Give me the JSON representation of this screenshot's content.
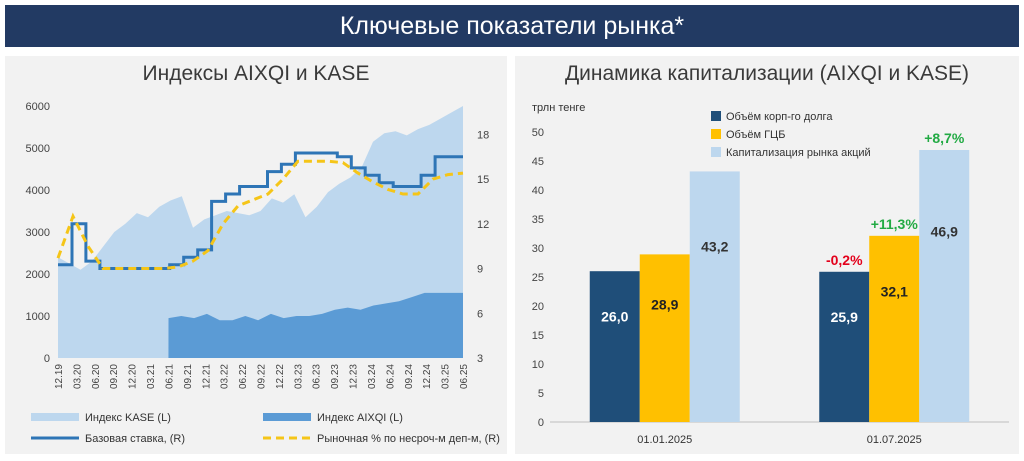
{
  "header": {
    "title": "Ключевые показатели рынка*"
  },
  "left_chart": {
    "title": "Индексы AIXQI и KASE",
    "legend": {
      "kase": "Индекс KASE (L)",
      "aixqi": "Индекс AIXQI (L)",
      "base_rate": "Базовая ставка, (R)",
      "market_rate": "Рыночная % по несроч-м деп-м, (R)"
    },
    "colors": {
      "kase": "#bdd7ee",
      "aixqi": "#5b9bd5",
      "base_rate": "#2e75b6",
      "market_rate": "#f5c518"
    }
  },
  "right_chart": {
    "title": "Динамика капитализации (AIXQI и KASE)",
    "unit": "трлн тенге",
    "legend": {
      "corp": "Объём корп-го долга",
      "gcb": "Объём ГЦБ",
      "cap": "Капитализация рынка акций"
    },
    "colors": {
      "corp": "#1f4e79",
      "gcb": "#ffc000",
      "cap": "#bdd7ee",
      "neg": "#e3001b",
      "pos": "#22aa44"
    }
  },
  "chart_data": [
    {
      "type": "area",
      "title": "Индексы AIXQI и KASE",
      "x_ticks": [
        "12.19",
        "03.20",
        "06.20",
        "09.20",
        "12.20",
        "03.21",
        "06.21",
        "09.21",
        "12.21",
        "03.22",
        "06.22",
        "09.22",
        "12.22",
        "03.23",
        "06.23",
        "09.23",
        "12.23",
        "03.24",
        "06.24",
        "09.24",
        "12.24",
        "03.25",
        "06.25"
      ],
      "y_left": {
        "ticks": [
          0,
          1000,
          2000,
          3000,
          4000,
          5000,
          6000
        ],
        "range": [
          0,
          6000
        ]
      },
      "y_right": {
        "ticks": [
          3,
          6,
          9,
          12,
          15,
          18
        ],
        "range": [
          3,
          19.9
        ]
      },
      "series": [
        {
          "name": "Индекс KASE (L)",
          "axis": "left",
          "kind": "area",
          "values": [
            2400,
            2250,
            2100,
            2300,
            2650,
            3000,
            3200,
            3450,
            3350,
            3600,
            3750,
            3850,
            3100,
            3300,
            3400,
            3500,
            3450,
            3400,
            3500,
            3800,
            3700,
            3900,
            3350,
            3600,
            3950,
            4150,
            4300,
            4550,
            5150,
            5350,
            5400,
            5300,
            5450,
            5550,
            5700,
            5850,
            6000
          ]
        },
        {
          "name": "Индекс AIXQI (L)",
          "axis": "left",
          "kind": "area",
          "start_tick": 6,
          "values": [
            950,
            1000,
            950,
            1050,
            900,
            900,
            1000,
            900,
            1050,
            950,
            1000,
            1000,
            1050,
            1150,
            1200,
            1150,
            1250,
            1300,
            1350,
            1450,
            1550,
            1550,
            1550,
            1550
          ]
        },
        {
          "name": "Базовая ставка, (R)",
          "axis": "right",
          "kind": "step",
          "values": [
            9.25,
            12.0,
            9.5,
            9.0,
            9.0,
            9.0,
            9.0,
            9.0,
            9.25,
            9.75,
            10.25,
            13.5,
            14.0,
            14.5,
            14.5,
            15.5,
            16.0,
            16.75,
            16.75,
            16.75,
            16.5,
            15.75,
            15.25,
            14.75,
            14.5,
            14.5,
            15.25,
            16.5,
            16.5
          ]
        },
        {
          "name": "Рыночная % по несроч-м деп-м, (R)",
          "axis": "right",
          "kind": "line",
          "values": [
            9.7,
            12.5,
            10.5,
            9.0,
            9.0,
            9.0,
            9.0,
            9.0,
            9.1,
            9.5,
            10.2,
            12.0,
            13.2,
            13.6,
            14.0,
            15.0,
            16.2,
            16.2,
            16.2,
            16.1,
            15.4,
            14.8,
            14.3,
            14.0,
            14.0,
            15.0,
            15.3,
            15.4
          ]
        }
      ]
    },
    {
      "type": "bar",
      "title": "Динамика капитализации (AIXQI и KASE)",
      "ylabel": "трлн тенге",
      "categories": [
        "01.01.2025",
        "01.07.2025"
      ],
      "ylim": [
        0,
        50
      ],
      "y_ticks": [
        0,
        5,
        10,
        15,
        20,
        25,
        30,
        35,
        40,
        45,
        50
      ],
      "series": [
        {
          "name": "Объём корп-го долга",
          "values": [
            26.0,
            25.9
          ],
          "labels": [
            "26,0",
            "25,9"
          ]
        },
        {
          "name": "Объём ГЦБ",
          "values": [
            28.9,
            32.1
          ],
          "labels": [
            "28,9",
            "32,1"
          ]
        },
        {
          "name": "Капитализация рынка акций",
          "values": [
            43.2,
            46.9
          ],
          "labels": [
            "43,2",
            "46,9"
          ]
        }
      ],
      "changes": [
        {
          "series": 0,
          "text": "-0,2%",
          "sign": "neg"
        },
        {
          "series": 1,
          "text": "+11,3%",
          "sign": "pos"
        },
        {
          "series": 2,
          "text": "+8,7%",
          "sign": "pos"
        }
      ]
    }
  ]
}
